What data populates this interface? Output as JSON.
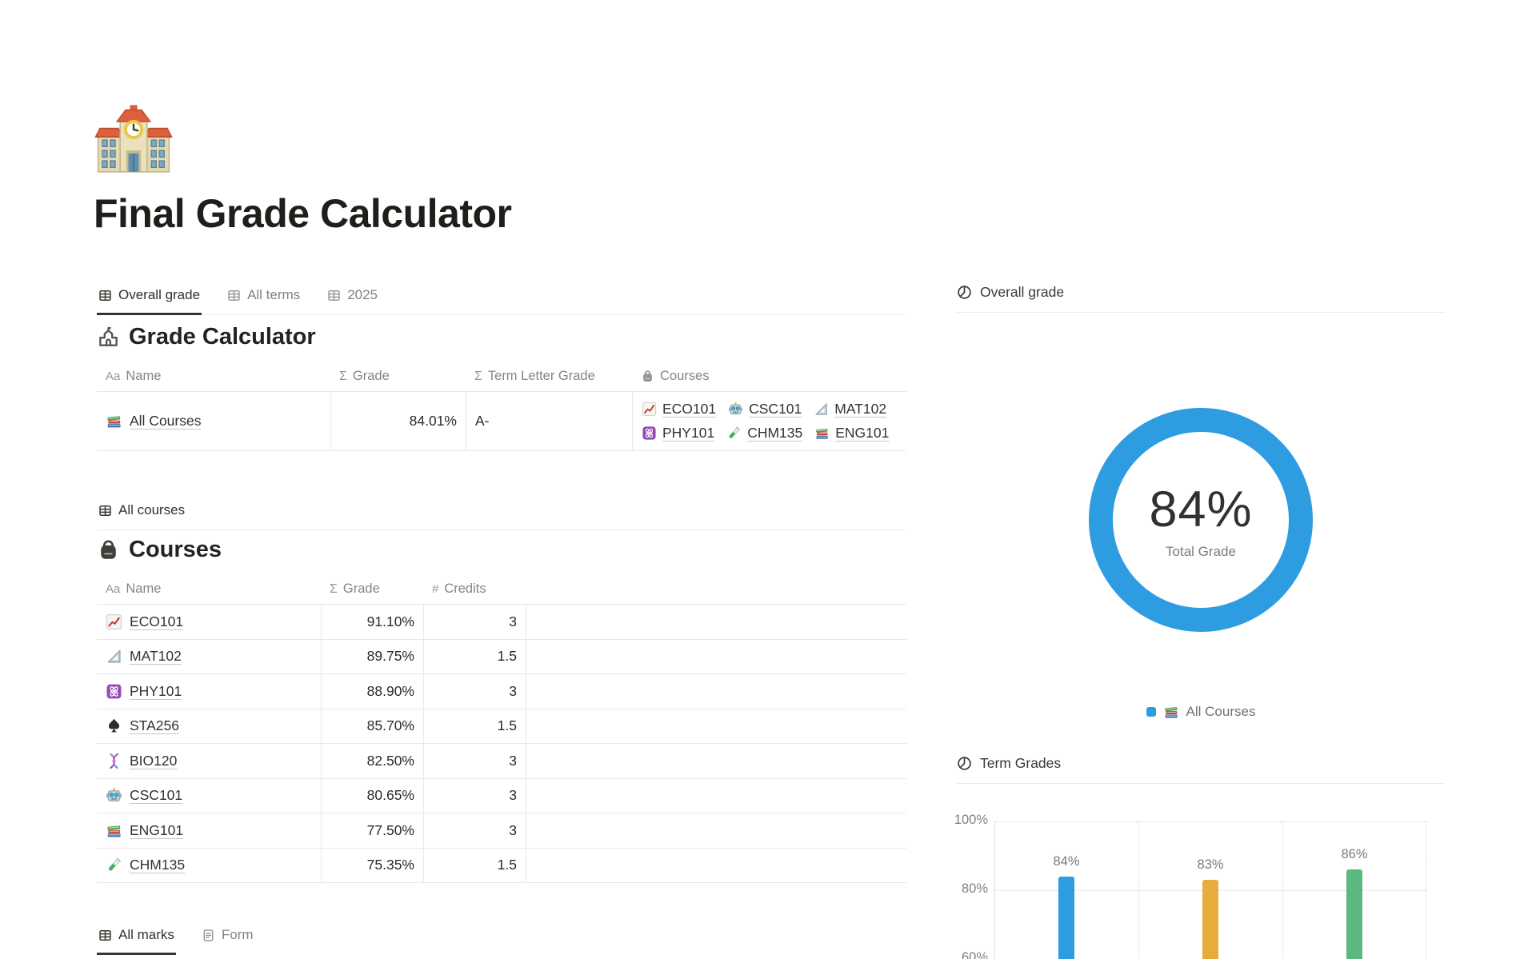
{
  "page": {
    "title": "Final Grade Calculator",
    "icon": "school-emoji"
  },
  "top_tabs": [
    {
      "label": "Overall grade",
      "icon": "table",
      "active": true
    },
    {
      "label": "All terms",
      "icon": "table",
      "active": false
    },
    {
      "label": "2025",
      "icon": "table",
      "active": false
    }
  ],
  "grade_calculator": {
    "title": "Grade Calculator",
    "icon": "school-glyph",
    "headers": {
      "name": "Name",
      "grade": "Grade",
      "term_letter_grade": "Term Letter Grade",
      "courses": "Courses"
    },
    "row": {
      "name": "All Courses",
      "name_icon": "books",
      "grade": "84.01%",
      "term_letter_grade": "A-",
      "courses": [
        {
          "label": "ECO101",
          "icon": "chart-increasing"
        },
        {
          "label": "CSC101",
          "icon": "robot"
        },
        {
          "label": "MAT102",
          "icon": "triangular-ruler"
        },
        {
          "label": "PHY101",
          "icon": "atom"
        },
        {
          "label": "CHM135",
          "icon": "test-tube"
        },
        {
          "label": "ENG101",
          "icon": "books"
        }
      ]
    }
  },
  "all_courses_view": {
    "label": "All courses",
    "icon": "table"
  },
  "courses_table": {
    "title": "Courses",
    "icon": "backpack",
    "headers": {
      "name": "Name",
      "grade": "Grade",
      "credits": "Credits"
    },
    "rows": [
      {
        "name": "ECO101",
        "icon": "chart-increasing",
        "grade": "91.10%",
        "credits": "3"
      },
      {
        "name": "MAT102",
        "icon": "triangular-ruler",
        "grade": "89.75%",
        "credits": "1.5"
      },
      {
        "name": "PHY101",
        "icon": "atom",
        "grade": "88.90%",
        "credits": "3"
      },
      {
        "name": "STA256",
        "icon": "spade",
        "grade": "85.70%",
        "credits": "1.5"
      },
      {
        "name": "BIO120",
        "icon": "dna",
        "grade": "82.50%",
        "credits": "3"
      },
      {
        "name": "CSC101",
        "icon": "robot",
        "grade": "80.65%",
        "credits": "3"
      },
      {
        "name": "ENG101",
        "icon": "books",
        "grade": "77.50%",
        "credits": "3"
      },
      {
        "name": "CHM135",
        "icon": "test-tube",
        "grade": "75.35%",
        "credits": "1.5"
      }
    ]
  },
  "bottom_tabs": [
    {
      "label": "All marks",
      "icon": "table",
      "active": true
    },
    {
      "label": "Form",
      "icon": "document",
      "active": false
    }
  ],
  "right_panel": {
    "overall_grade_title": "Overall grade",
    "term_grades_title": "Term Grades",
    "legend_label": "All Courses"
  },
  "chart_data": [
    {
      "type": "pie",
      "title": "Overall grade",
      "slices": [
        {
          "name": "All Courses",
          "fraction": 1.0
        }
      ],
      "center_text": "84%",
      "center_subtext": "Total Grade",
      "color": "#2E9CE1",
      "legend_position": "bottom"
    },
    {
      "type": "bar",
      "title": "Term Grades",
      "values": [
        84,
        83,
        86
      ],
      "data_labels": [
        "84%",
        "83%",
        "86%"
      ],
      "colors": [
        "#2E9CE1",
        "#E6AC3C",
        "#5BB97E"
      ],
      "yticks": [
        "100%",
        "80%",
        "60%"
      ],
      "ylim": [
        60,
        100
      ],
      "grid": "dotted"
    }
  ]
}
